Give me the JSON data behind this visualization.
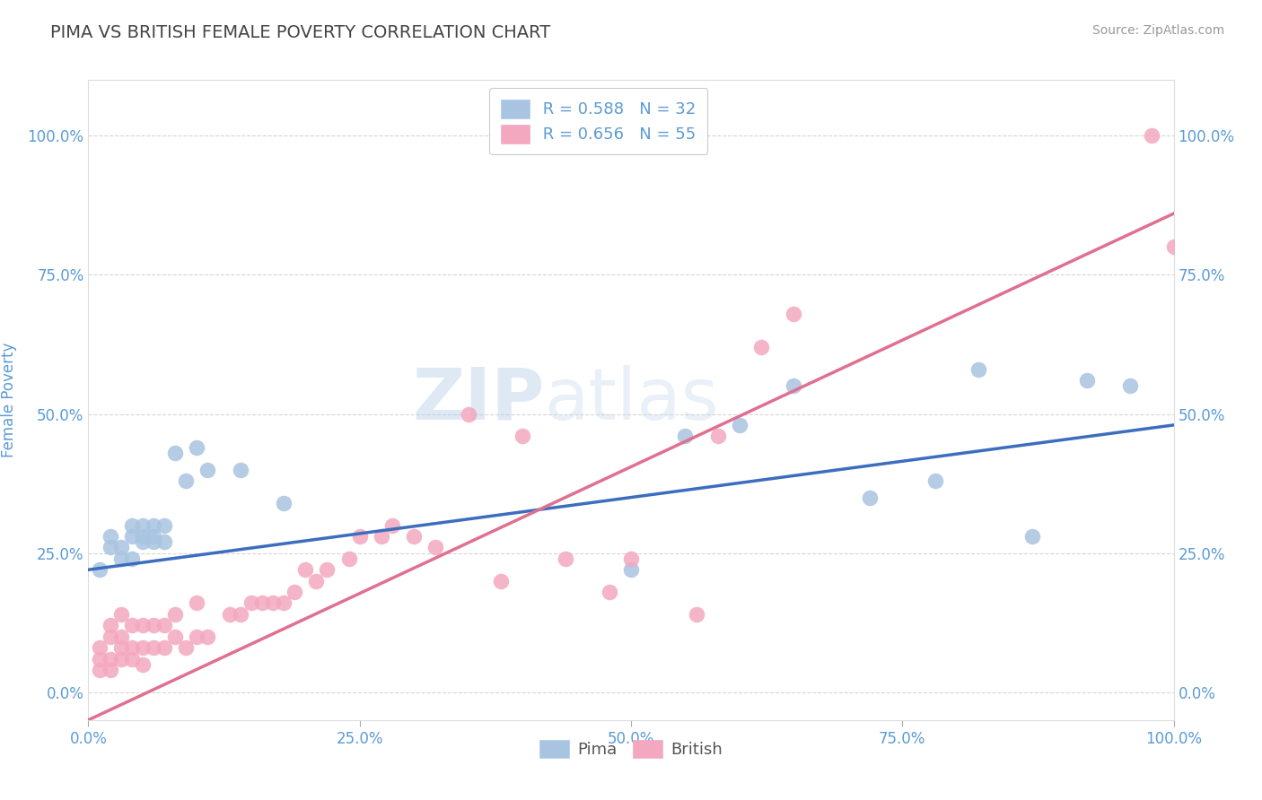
{
  "title": "PIMA VS BRITISH FEMALE POVERTY CORRELATION CHART",
  "source": "Source: ZipAtlas.com",
  "ylabel": "Female Poverty",
  "xlim": [
    0.0,
    1.0
  ],
  "ylim": [
    -0.05,
    1.1
  ],
  "yticks": [
    0.0,
    0.25,
    0.5,
    0.75,
    1.0
  ],
  "xticks": [
    0.0,
    0.25,
    0.5,
    0.75,
    1.0
  ],
  "pima_R": 0.588,
  "pima_N": 32,
  "british_R": 0.656,
  "british_N": 55,
  "pima_color": "#a8c4e0",
  "british_color": "#f4a8c0",
  "pima_line_color": "#3c6ebf",
  "british_line_color": "#e07090",
  "background_color": "#ffffff",
  "grid_color": "#cccccc",
  "pima_line_x0": 0.0,
  "pima_line_y0": 0.22,
  "pima_line_x1": 1.0,
  "pima_line_y1": 0.48,
  "british_line_x0": 0.0,
  "british_line_y0": -0.05,
  "british_line_x1": 1.0,
  "british_line_y1": 0.86,
  "pima_x": [
    0.01,
    0.02,
    0.02,
    0.03,
    0.03,
    0.04,
    0.04,
    0.04,
    0.05,
    0.05,
    0.05,
    0.06,
    0.06,
    0.06,
    0.07,
    0.07,
    0.08,
    0.09,
    0.1,
    0.11,
    0.14,
    0.18,
    0.5,
    0.55,
    0.6,
    0.65,
    0.72,
    0.78,
    0.82,
    0.87,
    0.92,
    0.96
  ],
  "pima_y": [
    0.22,
    0.26,
    0.28,
    0.24,
    0.26,
    0.3,
    0.28,
    0.24,
    0.3,
    0.27,
    0.28,
    0.28,
    0.3,
    0.27,
    0.3,
    0.27,
    0.43,
    0.38,
    0.44,
    0.4,
    0.4,
    0.34,
    0.22,
    0.46,
    0.48,
    0.55,
    0.35,
    0.38,
    0.58,
    0.28,
    0.56,
    0.55
  ],
  "british_x": [
    0.01,
    0.01,
    0.01,
    0.02,
    0.02,
    0.02,
    0.02,
    0.03,
    0.03,
    0.03,
    0.03,
    0.04,
    0.04,
    0.04,
    0.05,
    0.05,
    0.05,
    0.06,
    0.06,
    0.07,
    0.07,
    0.08,
    0.08,
    0.09,
    0.1,
    0.1,
    0.11,
    0.13,
    0.14,
    0.15,
    0.16,
    0.17,
    0.18,
    0.19,
    0.2,
    0.21,
    0.22,
    0.24,
    0.25,
    0.27,
    0.28,
    0.3,
    0.32,
    0.35,
    0.38,
    0.4,
    0.44,
    0.48,
    0.5,
    0.56,
    0.58,
    0.62,
    0.65,
    0.98,
    1.0
  ],
  "british_y": [
    0.04,
    0.06,
    0.08,
    0.04,
    0.06,
    0.1,
    0.12,
    0.06,
    0.08,
    0.1,
    0.14,
    0.06,
    0.08,
    0.12,
    0.05,
    0.08,
    0.12,
    0.08,
    0.12,
    0.08,
    0.12,
    0.1,
    0.14,
    0.08,
    0.1,
    0.16,
    0.1,
    0.14,
    0.14,
    0.16,
    0.16,
    0.16,
    0.16,
    0.18,
    0.22,
    0.2,
    0.22,
    0.24,
    0.28,
    0.28,
    0.3,
    0.28,
    0.26,
    0.5,
    0.2,
    0.46,
    0.24,
    0.18,
    0.24,
    0.14,
    0.46,
    0.62,
    0.68,
    1.0,
    0.8
  ],
  "watermark_zip": "ZIP",
  "watermark_atlas": "atlas",
  "title_color": "#444444",
  "tick_label_color": "#5b9bd5",
  "legend_color": "#5b9bd5"
}
